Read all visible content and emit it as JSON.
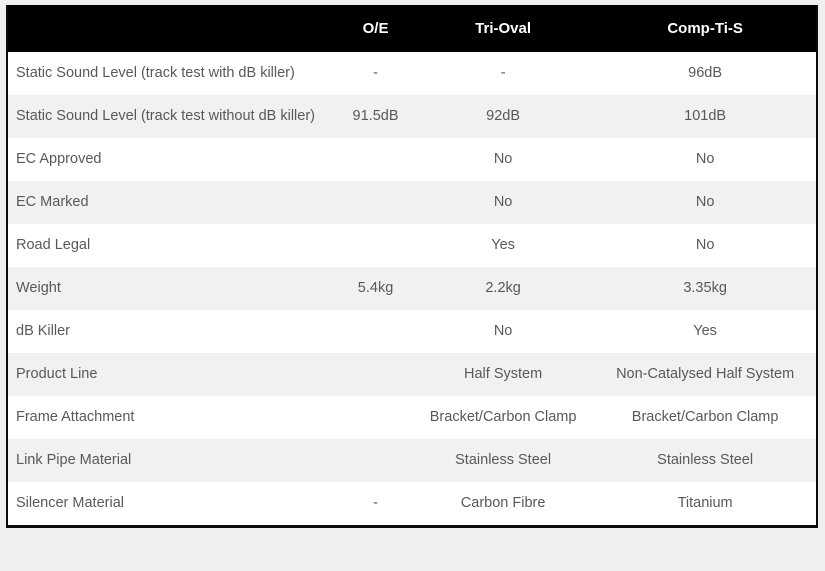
{
  "table": {
    "columns": {
      "attribute": "",
      "col1": "O/E",
      "col2": "Tri-Oval",
      "col3": "Comp-Ti-S"
    },
    "rows": [
      {
        "label": "Static Sound Level (track test with dB killer)",
        "values": [
          "-",
          "-",
          "96dB"
        ]
      },
      {
        "label": "Static Sound Level (track test without dB killer)",
        "values": [
          "91.5dB",
          "92dB",
          "101dB"
        ]
      },
      {
        "label": "EC Approved",
        "values": [
          "",
          "No",
          "No"
        ]
      },
      {
        "label": "EC Marked",
        "values": [
          "",
          "No",
          "No"
        ]
      },
      {
        "label": "Road Legal",
        "values": [
          "",
          "Yes",
          "No"
        ]
      },
      {
        "label": "Weight",
        "values": [
          "5.4kg",
          "2.2kg",
          "3.35kg"
        ]
      },
      {
        "label": "dB Killer",
        "values": [
          "",
          "No",
          "Yes"
        ]
      },
      {
        "label": "Product Line",
        "values": [
          "",
          "Half System",
          "Non-Catalysed Half System"
        ]
      },
      {
        "label": "Frame Attachment",
        "values": [
          "",
          "Bracket/Carbon Clamp",
          "Bracket/Carbon Clamp"
        ]
      },
      {
        "label": "Link Pipe Material",
        "values": [
          "",
          "Stainless Steel",
          "Stainless Steel"
        ]
      },
      {
        "label": "Silencer Material",
        "values": [
          "-",
          "Carbon Fibre",
          "Titanium"
        ]
      }
    ],
    "colors": {
      "header_bg": "#000000",
      "header_text": "#ffffff",
      "row_bg": "#ffffff",
      "row_alt_bg": "#f1f1f1",
      "body_text": "#58595b",
      "page_bg": "#f1efed",
      "border": "#0b0b0b"
    }
  }
}
